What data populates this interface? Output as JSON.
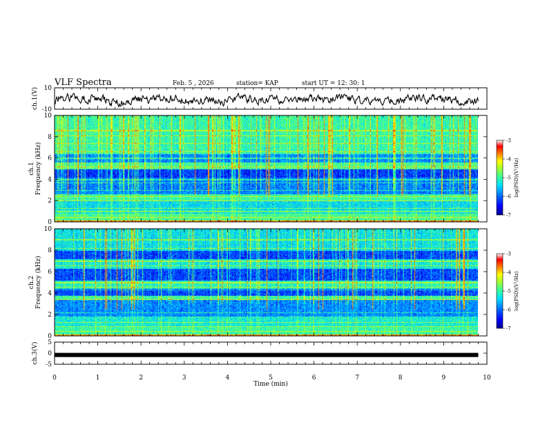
{
  "header": {
    "title": "VLF Spectra",
    "date": "Feb. 5 , 2026",
    "station": "station= KAP",
    "start": "start  UT =   12: 30: 1"
  },
  "colors": {
    "trace": "#000000",
    "colormap": [
      "#00008f",
      "#0000ff",
      "#0080ff",
      "#00e0ff",
      "#40ff90",
      "#a0ff30",
      "#ffff00",
      "#ff8000",
      "#ff0000",
      "#ffffff"
    ]
  },
  "chart_data": [
    {
      "type": "line",
      "name": "ch1-waveform",
      "ylabel": "ch.1(V)",
      "ylim": [
        -10,
        10
      ],
      "yticks": [
        "10",
        "-10"
      ],
      "xlim": [
        0,
        10
      ]
    },
    {
      "type": "heatmap",
      "name": "ch1-spectrogram",
      "ylabel": "ch.1\nFrequency (kHz)",
      "ylim": [
        0,
        10
      ],
      "yticks": [
        "0",
        "2",
        "4",
        "6",
        "8",
        "10"
      ],
      "xlim": [
        0,
        10
      ],
      "data_end_min": 9.8,
      "colorbar": {
        "label": "log(PSD)(V²/Hz)",
        "ticks": [
          "-3",
          "-4",
          "-5",
          "-6",
          "-7"
        ],
        "range": [
          -7,
          -3
        ]
      },
      "bands_khz": [
        {
          "from": 0.0,
          "to": 0.8,
          "level": "low-green"
        },
        {
          "from": 0.8,
          "to": 2.0,
          "level": "mixed"
        },
        {
          "from": 2.0,
          "to": 2.6,
          "level": "green"
        },
        {
          "from": 2.6,
          "to": 4.2,
          "level": "blue"
        },
        {
          "from": 4.2,
          "to": 5.0,
          "level": "dark-blue"
        },
        {
          "from": 5.0,
          "to": 5.6,
          "level": "green"
        },
        {
          "from": 5.6,
          "to": 6.4,
          "level": "blue"
        },
        {
          "from": 6.4,
          "to": 10.0,
          "level": "green"
        }
      ]
    },
    {
      "type": "heatmap",
      "name": "ch2-spectrogram",
      "ylabel": "ch.2\nFrequency (kHz)",
      "ylim": [
        0,
        10
      ],
      "yticks": [
        "0",
        "2",
        "4",
        "6",
        "8",
        "10"
      ],
      "xlim": [
        0,
        10
      ],
      "data_end_min": 9.8,
      "colorbar": {
        "label": "log(PSD)(V²/Hz)",
        "ticks": [
          "-3",
          "-4",
          "-5",
          "-6",
          "-7"
        ],
        "range": [
          -7,
          -3
        ]
      }
    },
    {
      "type": "line",
      "name": "ch3-waveform",
      "ylabel": "ch.3(V)",
      "ylim": [
        -5,
        5
      ],
      "yticks": [
        "5",
        "0",
        "-5"
      ],
      "xlim": [
        0,
        10
      ],
      "value_v": -0.8
    }
  ],
  "xaxis": {
    "label": "Time  (min)",
    "ticks": [
      "0",
      "1",
      "2",
      "3",
      "4",
      "5",
      "6",
      "7",
      "8",
      "9",
      "10"
    ],
    "range": [
      0,
      10
    ]
  }
}
